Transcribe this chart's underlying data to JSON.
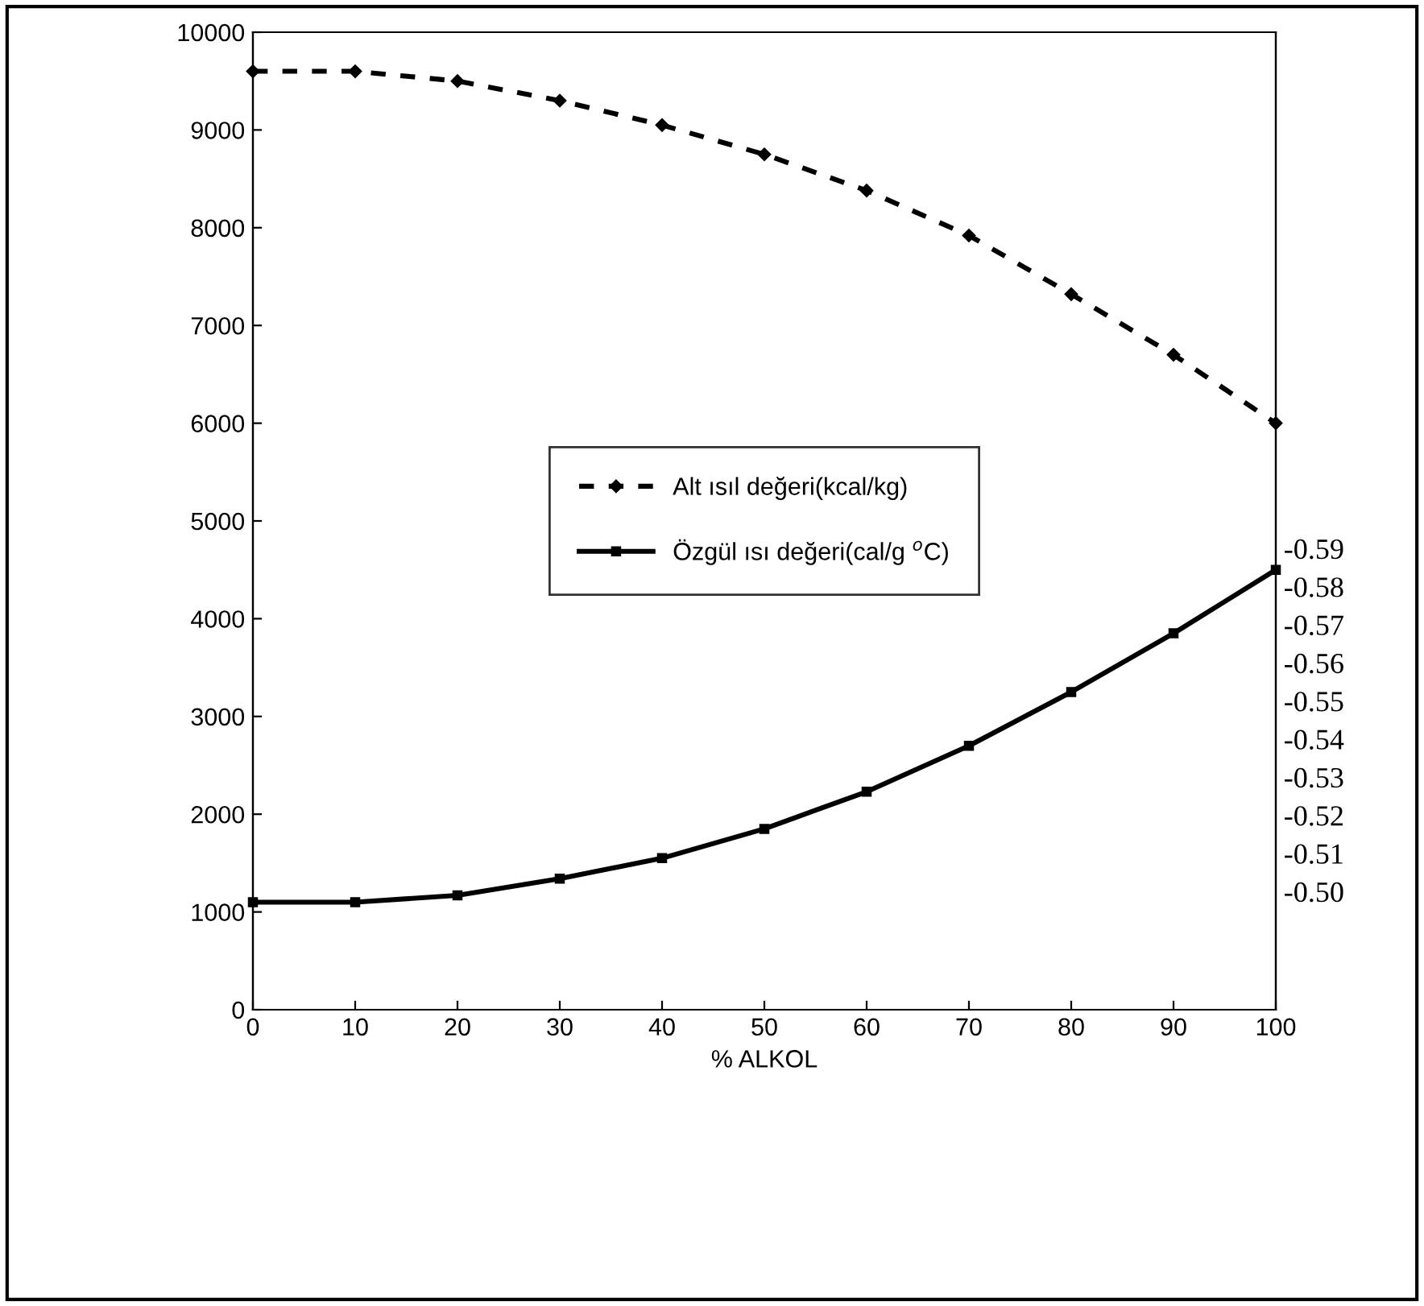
{
  "chart_data": {
    "type": "line",
    "xlabel": "% ALKOL",
    "x": [
      0,
      10,
      20,
      30,
      40,
      50,
      60,
      70,
      80,
      90,
      100
    ],
    "series": [
      {
        "name": "Alt ısıl değeri(kcal/kg)",
        "color": "#000000",
        "line_style": "dashed",
        "marker": "diamond",
        "values": [
          9600,
          9600,
          9500,
          9300,
          9050,
          8750,
          8380,
          7920,
          7320,
          6700,
          6000
        ]
      },
      {
        "name": "Özgül ısı değeri(cal/g $^{o}$C)",
        "color": "#000000",
        "line_style": "solid",
        "marker": "square",
        "values": [
          1100,
          1100,
          1170,
          1340,
          1550,
          1850,
          2230,
          2700,
          3250,
          3850,
          4500
        ]
      }
    ],
    "xlim": [
      0,
      100
    ],
    "xticks": [
      0,
      10,
      20,
      30,
      40,
      50,
      60,
      70,
      80,
      90,
      100
    ],
    "ylim": [
      0,
      10000
    ],
    "yticks": [
      0,
      1000,
      2000,
      3000,
      4000,
      5000,
      6000,
      7000,
      8000,
      9000,
      10000
    ],
    "y2lim": [
      -0.469,
      -0.7255
    ],
    "y2ticks": [
      -0.59,
      -0.58,
      -0.57,
      -0.56,
      -0.55,
      -0.54,
      -0.53,
      -0.52,
      -0.51,
      {
        "value": -0.5,
        "label": "-0.50"
      }
    ],
    "legend": "center",
    "grid": false
  }
}
